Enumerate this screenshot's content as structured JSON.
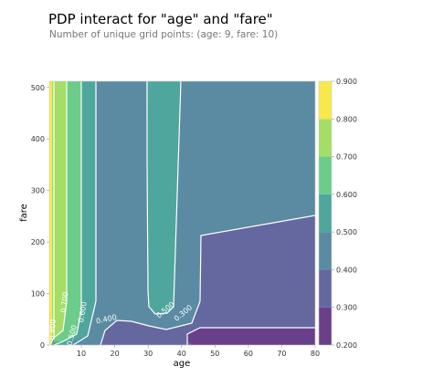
{
  "title": "PDP interact for \"age\" and \"fare\"",
  "subtitle": "Number of unique grid points: (age: 9, fare: 10)",
  "chart_data": {
    "type": "contour",
    "xlabel": "age",
    "ylabel": "fare",
    "xlim": [
      0.42,
      80
    ],
    "ylim": [
      0,
      512
    ],
    "x_ticks": [
      "10",
      "20",
      "30",
      "40",
      "50",
      "60",
      "70",
      "80"
    ],
    "y_ticks": [
      "0",
      "100",
      "200",
      "300",
      "400",
      "500"
    ],
    "x_tick_values": [
      10,
      20,
      30,
      40,
      50,
      60,
      70,
      80
    ],
    "y_tick_values": [
      0,
      100,
      200,
      300,
      400,
      500
    ],
    "colorbar": {
      "levels": [
        0.2,
        0.3,
        0.4,
        0.5,
        0.6,
        0.7,
        0.8,
        0.9
      ],
      "tick_labels": [
        "0.200",
        "0.300",
        "0.400",
        "0.500",
        "0.600",
        "0.700",
        "0.800",
        "0.900"
      ],
      "colors": [
        "#6a3f8a",
        "#65689f",
        "#5b8ba2",
        "#4fa69c",
        "#6ccc89",
        "#a4de66",
        "#f7e94a"
      ]
    },
    "contour_labels": [
      {
        "text": "0.400",
        "x": 17.5,
        "y": 50,
        "angle": -12
      },
      {
        "text": "0.500",
        "x": 35.2,
        "y": 68,
        "angle": -40
      },
      {
        "text": "0.300",
        "x": 40.5,
        "y": 62,
        "angle": -40
      },
      {
        "text": "0.500",
        "x": 7.2,
        "y": 19,
        "angle": -76
      },
      {
        "text": "0.600",
        "x": 10.4,
        "y": 64,
        "angle": -80
      },
      {
        "text": "0.700",
        "x": 5.0,
        "y": 83,
        "angle": -84
      },
      {
        "text": "0.800",
        "x": 1.4,
        "y": 30,
        "angle": -86
      }
    ]
  }
}
